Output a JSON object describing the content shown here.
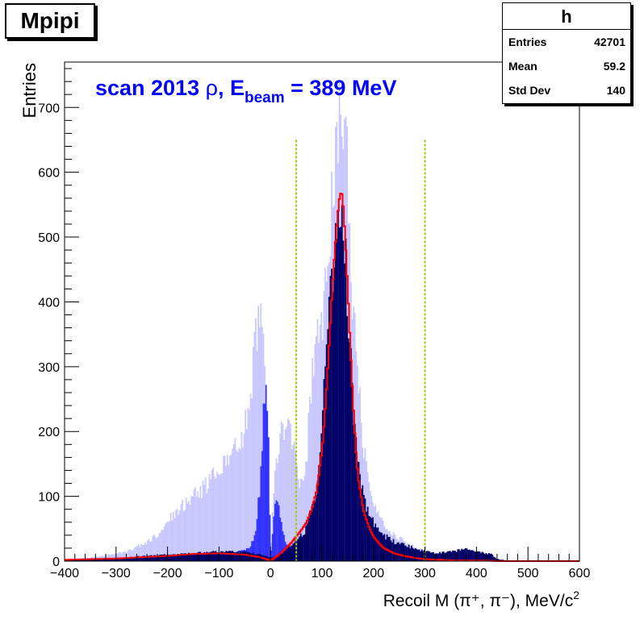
{
  "title": "Mpipi",
  "stats": {
    "name": "h",
    "rows": [
      {
        "label": "Entries",
        "value": "42701"
      },
      {
        "label": "Mean",
        "value": "59.2"
      },
      {
        "label": "Std Dev",
        "value": "140"
      }
    ]
  },
  "chart_data": {
    "type": "bar",
    "title": "",
    "annotation": {
      "prefix": "scan 2013 ",
      "greek": "ρ",
      "mid": ", E",
      "sub": "beam",
      "suffix": " = 389 MeV"
    },
    "xlabel": {
      "text": "Recoil M (π⁺, π⁻), MeV/c",
      "sup": "2"
    },
    "ylabel": "Entries",
    "xlim": [
      -400,
      600
    ],
    "ylim": [
      0,
      770
    ],
    "x_ticks": [
      -400,
      -300,
      -200,
      -100,
      0,
      100,
      200,
      300,
      400,
      500,
      600
    ],
    "y_ticks": [
      0,
      100,
      200,
      300,
      400,
      500,
      600,
      700
    ],
    "grid": false,
    "cut_lines": [
      50,
      300
    ],
    "colors": {
      "light_hist": "#c8c8ff",
      "mid_hist": "#3333ff",
      "dark_hist": "#000066",
      "fit_curve": "#ff0000",
      "cut_line": "#99cc00",
      "annotation": "#0000ff"
    },
    "series": [
      {
        "role": "light",
        "x": [
          -400,
          -360,
          -320,
          -280,
          -250,
          -220,
          -200,
          -180,
          -150,
          -120,
          -100,
          -80,
          -60,
          -40,
          -30,
          -20,
          -15,
          -10,
          -5,
          0,
          5,
          10,
          20,
          30,
          40,
          50,
          60,
          70,
          80,
          90,
          100,
          110,
          120,
          125,
          130,
          135,
          140,
          145,
          150,
          155,
          160,
          170,
          180,
          190,
          200,
          220,
          240,
          260,
          280,
          300,
          330,
          360,
          400,
          430,
          440,
          460,
          500,
          600
        ],
        "y": [
          2,
          5,
          8,
          15,
          25,
          40,
          60,
          80,
          100,
          120,
          140,
          160,
          180,
          240,
          330,
          380,
          390,
          250,
          120,
          5,
          100,
          150,
          190,
          210,
          200,
          160,
          110,
          160,
          280,
          330,
          380,
          450,
          580,
          640,
          690,
          710,
          700,
          660,
          600,
          500,
          400,
          280,
          180,
          120,
          90,
          60,
          40,
          30,
          22,
          15,
          10,
          8,
          6,
          3,
          2,
          1,
          1,
          0
        ]
      },
      {
        "role": "mid",
        "x": [
          -400,
          -300,
          -200,
          -100,
          -60,
          -40,
          -30,
          -20,
          -15,
          -12,
          -8,
          -5,
          -2,
          0,
          3,
          5,
          8,
          10,
          15,
          20,
          25,
          30,
          40,
          50,
          60,
          600
        ],
        "y": [
          1,
          2,
          6,
          12,
          15,
          20,
          40,
          120,
          210,
          250,
          260,
          220,
          120,
          3,
          40,
          60,
          90,
          105,
          90,
          60,
          40,
          25,
          20,
          10,
          0,
          0
        ]
      },
      {
        "role": "dark",
        "x": [
          -400,
          -300,
          -200,
          -150,
          -100,
          -50,
          -20,
          0,
          20,
          40,
          50,
          60,
          70,
          80,
          90,
          100,
          110,
          120,
          125,
          130,
          135,
          140,
          145,
          150,
          155,
          160,
          170,
          180,
          190,
          200,
          220,
          240,
          260,
          280,
          300,
          320,
          350,
          380,
          400,
          430,
          440,
          460,
          500,
          600
        ],
        "y": [
          2,
          5,
          10,
          12,
          15,
          14,
          10,
          5,
          10,
          25,
          35,
          40,
          50,
          80,
          120,
          210,
          330,
          450,
          500,
          540,
          560,
          520,
          470,
          400,
          330,
          250,
          150,
          100,
          75,
          60,
          40,
          30,
          25,
          20,
          15,
          12,
          15,
          18,
          15,
          10,
          3,
          1,
          0,
          0
        ]
      },
      {
        "role": "fit",
        "x": [
          -400,
          -350,
          -300,
          -250,
          -200,
          -150,
          -100,
          -50,
          -20,
          0,
          10,
          20,
          30,
          40,
          50,
          60,
          70,
          80,
          90,
          100,
          105,
          110,
          115,
          120,
          125,
          130,
          133,
          135,
          138,
          140,
          142,
          145,
          150,
          155,
          160,
          165,
          170,
          180,
          190,
          200,
          210,
          220,
          240,
          260,
          280,
          300,
          330,
          360,
          400,
          450,
          500,
          600
        ],
        "y": [
          2,
          3,
          4,
          6,
          8,
          11,
          12,
          10,
          6,
          1,
          6,
          12,
          20,
          28,
          38,
          48,
          60,
          80,
          110,
          170,
          220,
          280,
          350,
          420,
          480,
          530,
          555,
          565,
          570,
          560,
          540,
          500,
          420,
          330,
          250,
          180,
          130,
          80,
          55,
          38,
          28,
          20,
          12,
          8,
          5,
          3,
          2,
          1,
          1,
          0,
          0,
          0
        ]
      }
    ]
  }
}
